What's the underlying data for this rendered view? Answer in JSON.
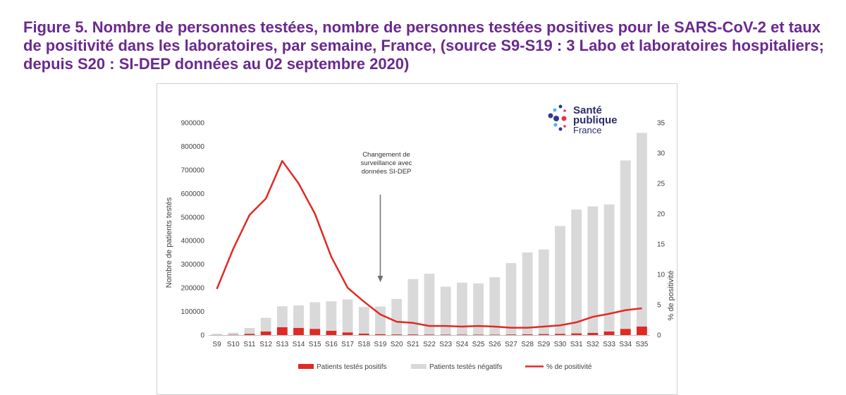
{
  "title": "Figure 5. Nombre de personnes testées, nombre de personnes testées positives pour le SARS-CoV-2 et taux de positivité dans les laboratoires, par semaine, France, (source S9-S19 : 3 Labo et laboratoires hospitaliers; depuis S20 : SI-DEP données au 02 septembre 2020)",
  "logo": {
    "line1": "Santé",
    "line2": "publique",
    "line3": "France"
  },
  "annotation": {
    "lines": [
      "Changement de",
      "surveillance avec",
      "données SI-DEP"
    ],
    "at_category": "S19"
  },
  "chart_data": {
    "type": "bar",
    "categories": [
      "S9",
      "S10",
      "S11",
      "S12",
      "S13",
      "S14",
      "S15",
      "S16",
      "S17",
      "S18",
      "S19",
      "S20",
      "S21",
      "S22",
      "S23",
      "S24",
      "S25",
      "S26",
      "S27",
      "S28",
      "S29",
      "S30",
      "S31",
      "S32",
      "S33",
      "S34",
      "S35"
    ],
    "series": [
      {
        "name": "Patients testés positifs",
        "kind": "bar",
        "axis": "left",
        "values": [
          400,
          1200,
          5000,
          15000,
          33000,
          30000,
          26000,
          18000,
          11000,
          6000,
          3500,
          2500,
          2500,
          2000,
          1700,
          1500,
          1600,
          1600,
          2200,
          3000,
          4000,
          5000,
          7000,
          9000,
          15000,
          26000,
          36000
        ]
      },
      {
        "name": "Patients testés négatifs",
        "kind": "bar",
        "axis": "left",
        "values": [
          4600,
          8800,
          25000,
          58000,
          89000,
          96000,
          113000,
          125000,
          140000,
          113000,
          117500,
          150500,
          234500,
          258000,
          203300,
          220500,
          217400,
          243400,
          302800,
          347000,
          359000,
          457000,
          525000,
          536000,
          539000,
          714000,
          821000
        ]
      },
      {
        "name": "% de positivité",
        "kind": "line",
        "axis": "right",
        "values": [
          7.6,
          14.2,
          19.8,
          22.5,
          28.7,
          25.0,
          20.0,
          12.9,
          7.8,
          5.5,
          3.4,
          2.2,
          2.0,
          1.5,
          1.5,
          1.4,
          1.5,
          1.4,
          1.2,
          1.2,
          1.4,
          1.6,
          2.1,
          3.0,
          3.5,
          4.1,
          4.4
        ]
      }
    ],
    "ylabel": "Nombre de patients testés",
    "y2label": "% de positivité",
    "ylim": [
      0,
      900000
    ],
    "y2lim": [
      0,
      35
    ],
    "yticks": [
      0,
      100000,
      200000,
      300000,
      400000,
      500000,
      600000,
      700000,
      800000,
      900000
    ],
    "y2ticks": [
      0,
      5,
      10,
      15,
      20,
      25,
      30,
      35
    ],
    "grid": false,
    "legend": "bottom",
    "colors": {
      "positive": "#e02a24",
      "negative": "#d9d9d9",
      "line": "#e02a24",
      "title": "#6a2a8e"
    }
  }
}
